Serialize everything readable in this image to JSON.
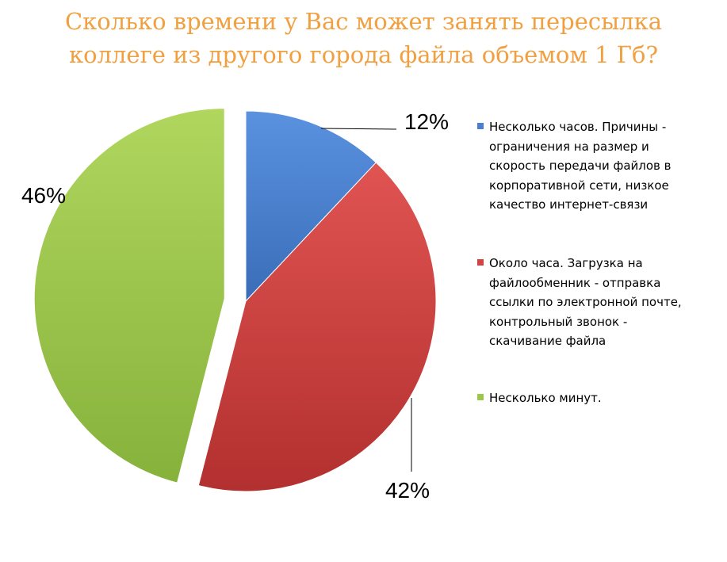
{
  "title_lines": [
    "Сколько времени у Вас может занять пересылка",
    "коллеге из другого города файла объемом 1 Гб?"
  ],
  "chart_data": {
    "type": "pie",
    "title": "Сколько времени у Вас может занять пересылка коллеге из другого города файла объемом 1 Гб?",
    "categories": [
      "Несколько часов. Причины - ограничения на размер и скорость передачи файлов в корпоративной сети, низкое качество интернет-связи",
      "Около часа. Загрузка на файлообменник - отправка ссылки по электронной почте, контрольный звонок - скачивание файла",
      "Несколько минут."
    ],
    "values": [
      12,
      42,
      46
    ],
    "labels": [
      "12%",
      "42%",
      "46%"
    ],
    "colors": [
      "#4a7fcf",
      "#d24341",
      "#9bc74a"
    ],
    "exploded": [
      false,
      false,
      true
    ],
    "legend_position": "right"
  },
  "legend": [
    {
      "lines": [
        "Несколько часов. Причины -",
        "ограничения на размер и",
        "скорость передачи файлов в",
        "корпоративной сети, низкое",
        "качество интернет-связи"
      ]
    },
    {
      "lines": [
        "Около часа. Загрузка на",
        "файлообменник - отправка",
        "ссылки по электронной почте,",
        "контрольный звонок -",
        "скачивание файла"
      ]
    },
    {
      "lines": [
        "Несколько минут."
      ]
    }
  ]
}
